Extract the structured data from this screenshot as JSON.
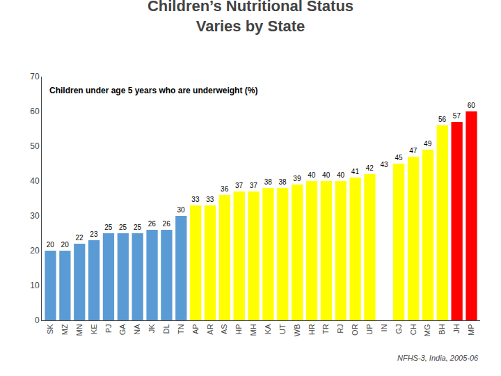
{
  "chart_data": {
    "type": "bar",
    "title": "Children’s Nutritional Status\nVaries by State",
    "subtitle": "Children under age 5 years who are underweight (%)",
    "annotations": [
      "NFHS-3, India, 2005-06"
    ],
    "categories": [
      "SK",
      "MZ",
      "MN",
      "KE",
      "PJ",
      "GA",
      "NA",
      "JK",
      "DL",
      "TN",
      "AP",
      "AR",
      "AS",
      "HP",
      "MH",
      "KA",
      "UT",
      "WB",
      "HR",
      "TR",
      "RJ",
      "OR",
      "UP",
      "IN",
      "GJ",
      "CH",
      "MG",
      "BH",
      "JH",
      "MP"
    ],
    "values": [
      20,
      20,
      22,
      23,
      25,
      25,
      25,
      26,
      26,
      30,
      33,
      33,
      36,
      37,
      37,
      38,
      38,
      39,
      40,
      40,
      40,
      41,
      42,
      43,
      45,
      47,
      49,
      56,
      57,
      60
    ],
    "colors": [
      "#5b9bd5",
      "#5b9bd5",
      "#5b9bd5",
      "#5b9bd5",
      "#5b9bd5",
      "#5b9bd5",
      "#5b9bd5",
      "#5b9bd5",
      "#5b9bd5",
      "#5b9bd5",
      "#ffff00",
      "#ffff00",
      "#ffff00",
      "#ffff00",
      "#ffff00",
      "#ffff00",
      "#ffff00",
      "#ffff00",
      "#ffff00",
      "#ffff00",
      "#ffff00",
      "#ffff00",
      "#ffff00",
      "#ffffff",
      "#ffff00",
      "#ffff00",
      "#ffff00",
      "#ffff00",
      "#ff0000",
      "#ff0000"
    ],
    "ylim": [
      0,
      70
    ],
    "yticks": [
      0,
      10,
      20,
      30,
      40,
      50,
      60,
      70
    ],
    "grid": false,
    "data_labels": true
  }
}
